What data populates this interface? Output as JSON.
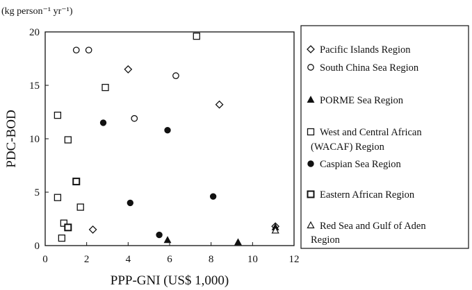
{
  "chart_data": {
    "type": "scatter",
    "unit_label": "(kg person⁻¹ yr⁻¹)",
    "xlabel": "PPP-GNI (US$ 1,000)",
    "ylabel": "PDC-BOD",
    "xlim": [
      0,
      12
    ],
    "ylim": [
      0,
      20
    ],
    "x_ticks": [
      0,
      2,
      4,
      6,
      8,
      10,
      12
    ],
    "y_ticks": [
      0,
      5,
      10,
      15,
      20
    ],
    "grid": false,
    "legend_position": "right",
    "series": [
      {
        "name": "Pacific Islands Region",
        "marker": "diamond-open",
        "points": [
          [
            4.0,
            16.5
          ],
          [
            8.4,
            13.2
          ],
          [
            2.3,
            1.5
          ],
          [
            11.1,
            1.8
          ]
        ]
      },
      {
        "name": "South China Sea Region",
        "marker": "circle-open",
        "points": [
          [
            1.5,
            18.3
          ],
          [
            2.1,
            18.3
          ],
          [
            6.3,
            15.9
          ],
          [
            4.3,
            11.9
          ]
        ]
      },
      {
        "name": "PORME Sea Region",
        "marker": "triangle-filled",
        "points": [
          [
            5.9,
            0.5
          ],
          [
            9.3,
            0.3
          ],
          [
            11.1,
            1.7
          ]
        ]
      },
      {
        "name": "West and Central African (WACAF) Region",
        "marker": "square-open",
        "points": [
          [
            7.3,
            19.6
          ],
          [
            2.9,
            14.8
          ],
          [
            0.6,
            12.2
          ],
          [
            1.1,
            9.9
          ],
          [
            0.6,
            4.5
          ],
          [
            1.7,
            3.6
          ],
          [
            0.9,
            2.1
          ],
          [
            0.8,
            0.7
          ]
        ]
      },
      {
        "name": "Caspian Sea Region",
        "marker": "circle-filled",
        "points": [
          [
            2.8,
            11.5
          ],
          [
            5.9,
            10.8
          ],
          [
            4.1,
            4.0
          ],
          [
            8.1,
            4.6
          ],
          [
            5.5,
            1.0
          ]
        ]
      },
      {
        "name": "Eastern African Region",
        "marker": "square-open-2",
        "points": [
          [
            1.5,
            6.0
          ],
          [
            1.1,
            1.7
          ]
        ]
      },
      {
        "name": "Red Sea and Gulf of Aden Region",
        "marker": "triangle-open",
        "points": [
          [
            11.1,
            1.4
          ]
        ]
      }
    ]
  }
}
